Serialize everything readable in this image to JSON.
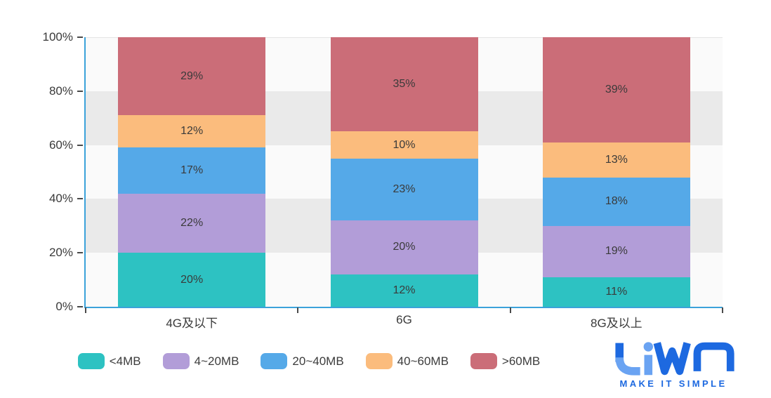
{
  "chart_data": {
    "type": "bar",
    "stacked": true,
    "percentage": true,
    "categories": [
      "4G及以下",
      "6G",
      "8G及以上"
    ],
    "series": [
      {
        "name": "<4MB",
        "color": "#2dc2c2",
        "values": [
          20,
          12,
          11
        ]
      },
      {
        "name": "4~20MB",
        "color": "#b29dd8",
        "values": [
          22,
          20,
          19
        ]
      },
      {
        "name": "20~40MB",
        "color": "#55a9e8",
        "values": [
          17,
          23,
          18
        ]
      },
      {
        "name": "40~60MB",
        "color": "#fbbc7d",
        "values": [
          12,
          10,
          13
        ]
      },
      {
        "name": ">60MB",
        "color": "#cb6d78",
        "values": [
          29,
          35,
          39
        ]
      }
    ],
    "data_labels": [
      "%",
      "shown inside each segment"
    ],
    "y_axis": {
      "min": 0,
      "max": 100,
      "tick_step": 20,
      "ticks": [
        "0%",
        "20%",
        "40%",
        "60%",
        "80%",
        "100%"
      ]
    },
    "x_axis_label": "",
    "y_axis_label": "",
    "title": "",
    "legend_position": "bottom",
    "grid": "striped horizontal bands",
    "band_colors": {
      "light": "#fafafa",
      "gray": "#eaeaea"
    },
    "axis_color": "#3ba2da",
    "tick_color": "#4a4a4a"
  },
  "legend": {
    "items": [
      "<4MB",
      "4~20MB",
      "20~40MB",
      "40~60MB",
      ">60MB"
    ]
  },
  "logo": {
    "brand": "LiWA",
    "tagline": "MAKE IT SIMPLE",
    "color": "#1d69e0",
    "accent": "#6aa3f2"
  }
}
